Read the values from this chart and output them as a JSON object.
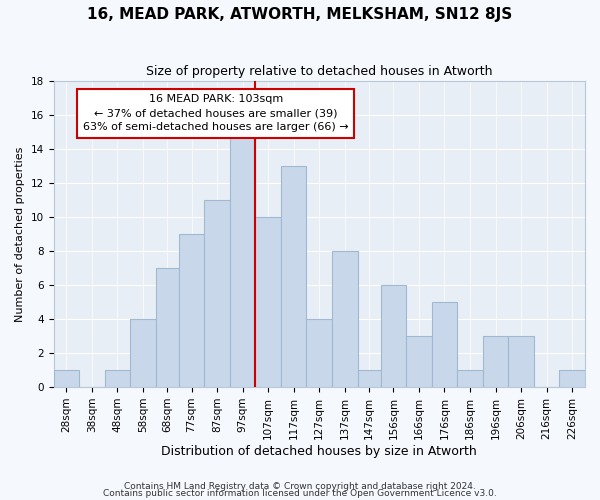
{
  "title1": "16, MEAD PARK, ATWORTH, MELKSHAM, SN12 8JS",
  "title2": "Size of property relative to detached houses in Atworth",
  "xlabel": "Distribution of detached houses by size in Atworth",
  "ylabel": "Number of detached properties",
  "categories": [
    "28sqm",
    "38sqm",
    "48sqm",
    "58sqm",
    "68sqm",
    "77sqm",
    "87sqm",
    "97sqm",
    "107sqm",
    "117sqm",
    "127sqm",
    "137sqm",
    "147sqm",
    "156sqm",
    "166sqm",
    "176sqm",
    "186sqm",
    "196sqm",
    "206sqm",
    "216sqm",
    "226sqm"
  ],
  "values": [
    1,
    0,
    1,
    4,
    7,
    9,
    11,
    15,
    10,
    13,
    4,
    8,
    1,
    6,
    3,
    5,
    1,
    3,
    3,
    0,
    1
  ],
  "bar_color": "#c8d8ea",
  "bar_edge_color": "#a0b8d0",
  "bin_edges": [
    23,
    33,
    43,
    53,
    63,
    72,
    82,
    92,
    102,
    112,
    122,
    132,
    142,
    151,
    161,
    171,
    181,
    191,
    201,
    211,
    221,
    231
  ],
  "vline_color": "#cc0000",
  "vline_x": 102,
  "annotation_line1": "16 MEAD PARK: 103sqm",
  "annotation_line2": "← 37% of detached houses are smaller (39)",
  "annotation_line3": "63% of semi-detached houses are larger (66) →",
  "annotation_box_color": "#ffffff",
  "annotation_box_edge": "#cc0000",
  "ylim": [
    0,
    18
  ],
  "yticks": [
    0,
    2,
    4,
    6,
    8,
    10,
    12,
    14,
    16,
    18
  ],
  "footer1": "Contains HM Land Registry data © Crown copyright and database right 2024.",
  "footer2": "Contains public sector information licensed under the Open Government Licence v3.0.",
  "bg_color": "#f5f8fc",
  "plot_bg_color": "#e8eef5",
  "grid_color": "#ffffff",
  "title1_fontsize": 11,
  "title2_fontsize": 9,
  "xlabel_fontsize": 9,
  "ylabel_fontsize": 8,
  "tick_fontsize": 7.5,
  "footer_fontsize": 6.5
}
